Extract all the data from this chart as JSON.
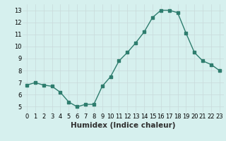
{
  "x": [
    0,
    1,
    2,
    3,
    4,
    5,
    6,
    7,
    8,
    9,
    10,
    11,
    12,
    13,
    14,
    15,
    16,
    17,
    18,
    19,
    20,
    21,
    22,
    23
  ],
  "y": [
    6.8,
    7.0,
    6.8,
    6.7,
    6.2,
    5.4,
    5.0,
    5.2,
    5.2,
    6.7,
    7.5,
    8.8,
    9.5,
    10.3,
    11.2,
    12.4,
    13.0,
    13.0,
    12.8,
    11.1,
    9.5,
    8.8,
    8.5,
    8.0
  ],
  "line_color": "#2e7d6e",
  "marker": "s",
  "markersize": 2.5,
  "linewidth": 1.0,
  "xlabel": "Humidex (Indice chaleur)",
  "ylabel": "",
  "title": "",
  "xlim": [
    -0.5,
    23.5
  ],
  "ylim": [
    4.5,
    13.5
  ],
  "yticks": [
    5,
    6,
    7,
    8,
    9,
    10,
    11,
    12,
    13
  ],
  "xticks": [
    0,
    1,
    2,
    3,
    4,
    5,
    6,
    7,
    8,
    9,
    10,
    11,
    12,
    13,
    14,
    15,
    16,
    17,
    18,
    19,
    20,
    21,
    22,
    23
  ],
  "bg_color": "#d6f0ee",
  "grid_color": "#c8dada",
  "tick_fontsize": 6,
  "label_fontsize": 7.5
}
